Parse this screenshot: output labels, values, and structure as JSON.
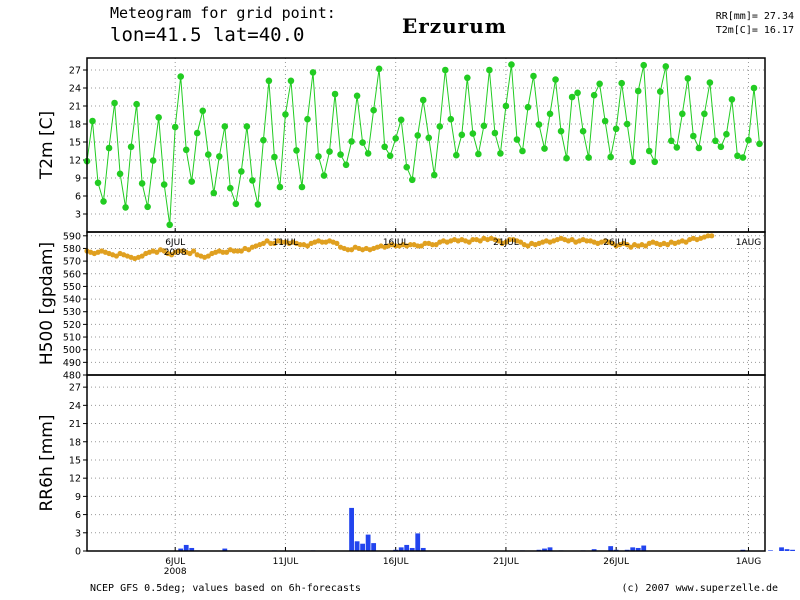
{
  "header": {
    "title_line1": "Meteogram for grid point:",
    "title_line2": "lon=41.5  lat=40.0",
    "station": "Erzurum",
    "stat_rr": "RR[mm]= 27.34",
    "stat_t2m": "T2m[C]= 16.17"
  },
  "footer": {
    "source": "NCEP GFS 0.5deg; values based on 6h-forecasts",
    "credit": "(c) 2007 www.superzelle.de"
  },
  "colors": {
    "t2m": "#22cc22",
    "h500": "#e0a020",
    "rr6h": "#2244ee",
    "grid": "#999999"
  },
  "chart_data": [
    {
      "type": "line",
      "panel": "t2m",
      "ylabel": "T2m [C]",
      "ylim": [
        0,
        29
      ],
      "yticks": [
        3,
        6,
        9,
        12,
        15,
        18,
        21,
        24,
        27
      ],
      "x_axis": {
        "start": "2008-07-02 00:00",
        "step_hours": 6,
        "tick_labels": [
          "6JUL",
          "11JUL",
          "16JUL",
          "21JUL",
          "26JUL",
          "1AUG"
        ],
        "tick_dates": [
          "2008-07-06",
          "2008-07-11",
          "2008-07-16",
          "2008-07-21",
          "2008-07-26",
          "2008-08-01"
        ],
        "year_label": "2008"
      },
      "grid": true,
      "series": [
        {
          "values": [
            11.8,
            18.5,
            8.2,
            5.1,
            14.0,
            21.5,
            9.7,
            4.1,
            14.2,
            21.3,
            8.1,
            4.2,
            11.9,
            19.1,
            7.9,
            1.2,
            17.5,
            25.9,
            13.7,
            8.4,
            16.5,
            20.2,
            12.9,
            6.5,
            12.6,
            17.6,
            7.3,
            4.7,
            10.1,
            17.6,
            8.6,
            4.6,
            15.3,
            25.2,
            12.5,
            7.5,
            19.6,
            25.2,
            13.6,
            7.5,
            18.8,
            26.6,
            12.6,
            9.4,
            13.4,
            23.0,
            12.9,
            11.2,
            15.1,
            22.7,
            14.9,
            13.1,
            20.3,
            27.2,
            14.2,
            12.7,
            15.6,
            18.7,
            10.8,
            8.7,
            16.1,
            22.0,
            15.7,
            9.5,
            17.6,
            27.0,
            18.8,
            12.8,
            16.2,
            25.7,
            16.4,
            13.0,
            17.7,
            27.0,
            16.5,
            13.1,
            21.0,
            27.9,
            15.4,
            13.5,
            20.8,
            26.0,
            17.9,
            13.9,
            19.7,
            25.4,
            16.8,
            12.3,
            22.5,
            23.2,
            16.8,
            12.4,
            22.8,
            24.7,
            18.5,
            12.5,
            17.2,
            24.8,
            18.0,
            11.7,
            23.5,
            27.8,
            13.5,
            11.7,
            23.4,
            27.6,
            15.2,
            14.1,
            19.7,
            25.6,
            16.0,
            14.0,
            19.7,
            24.9,
            15.2,
            14.2,
            16.3,
            22.1,
            12.7,
            12.4,
            15.3,
            24.0,
            14.7
          ]
        }
      ]
    },
    {
      "type": "line",
      "panel": "h500",
      "ylabel": "H500 [gpdam]",
      "ylim": [
        480,
        593
      ],
      "yticks": [
        480,
        490,
        500,
        510,
        520,
        530,
        540,
        550,
        560,
        570,
        580,
        590
      ],
      "grid": true,
      "series": [
        {
          "values": [
            578,
            577,
            576,
            577,
            578,
            577,
            576,
            575,
            574,
            576,
            575,
            574,
            573,
            572,
            573,
            574,
            576,
            577,
            578,
            577,
            579,
            578,
            576,
            575,
            577,
            578,
            578,
            577,
            576,
            578,
            575,
            574,
            573,
            574,
            576,
            577,
            578,
            577,
            577,
            579,
            578,
            578,
            578,
            580,
            579,
            581,
            582,
            583,
            584,
            586,
            584,
            584,
            586,
            585,
            585,
            584,
            585,
            584,
            583,
            583,
            582,
            584,
            585,
            586,
            585,
            585,
            586,
            585,
            584,
            581,
            580,
            579,
            579,
            581,
            580,
            579,
            580,
            579,
            580,
            581,
            582,
            581,
            582,
            583,
            582,
            582,
            583,
            582,
            583,
            583,
            582,
            582,
            584,
            584,
            583,
            583,
            585,
            586,
            585,
            586,
            587,
            586,
            587,
            586,
            585,
            587,
            587,
            586,
            588,
            587,
            588,
            587,
            586,
            584,
            585,
            587,
            587,
            586,
            585,
            583,
            582,
            584,
            583,
            584,
            585,
            586,
            585,
            586,
            587,
            588,
            587,
            586,
            587,
            585,
            586,
            587,
            586,
            586,
            585,
            584,
            585,
            586,
            585,
            584,
            582,
            583,
            584,
            583,
            581,
            583,
            582,
            583,
            582,
            584,
            585,
            584,
            583,
            584,
            583,
            585,
            584,
            585,
            586,
            585,
            587,
            588,
            587,
            588,
            589,
            590,
            590
          ]
        }
      ]
    },
    {
      "type": "bar",
      "panel": "rr6h",
      "ylabel": "RR6h [mm]",
      "ylim": [
        0,
        29
      ],
      "yticks": [
        0,
        3,
        6,
        9,
        12,
        15,
        18,
        21,
        24,
        27
      ],
      "grid": true,
      "series": [
        {
          "values": [
            0,
            0,
            0,
            0,
            0,
            0,
            0,
            0,
            0,
            0,
            0,
            0,
            0,
            0,
            0,
            0,
            0,
            0.4,
            1.0,
            0.5,
            0.1,
            0,
            0,
            0,
            0,
            0.4,
            0,
            0,
            0,
            0,
            0,
            0,
            0,
            0,
            0.1,
            0,
            0,
            0,
            0,
            0,
            0,
            0.1,
            0,
            0,
            0,
            0,
            0,
            0,
            7.1,
            1.6,
            1.2,
            2.7,
            1.3,
            0,
            0,
            0,
            0.2,
            0.6,
            1.0,
            0.5,
            2.9,
            0.5,
            0,
            0,
            0,
            0,
            0,
            0,
            0,
            0,
            0,
            0,
            0,
            0,
            0,
            0,
            0,
            0,
            0,
            0.1,
            0,
            0,
            0.2,
            0.4,
            0.6,
            0,
            0.1,
            0,
            0,
            0,
            0.1,
            0,
            0.3,
            0,
            0,
            0.8,
            0.2,
            0,
            0.2,
            0.6,
            0.5,
            0.9,
            0,
            0,
            0,
            0,
            0,
            0,
            0,
            0,
            0,
            0,
            0,
            0,
            0,
            0,
            0,
            0,
            0,
            0.2,
            0,
            0,
            0,
            0,
            0.1,
            0,
            0.6,
            0.3,
            0.2,
            0
          ]
        }
      ]
    }
  ]
}
